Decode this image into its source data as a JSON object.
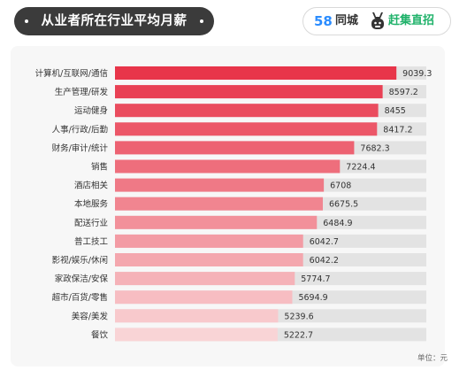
{
  "title": "从业者所在行业平均月薪资",
  "brand": {
    "part1": "58",
    "part2": "同城",
    "part3": "赶集直招",
    "logo_icon": "donkey-head-icon",
    "colors": {
      "blue": "#2a8cff",
      "orange": "#ff8a00",
      "green": "#1fb26a"
    }
  },
  "unit_label": "单位：元",
  "chart_data": {
    "type": "bar",
    "orientation": "horizontal",
    "title": "从业者所在行业平均月薪资",
    "categories": [
      "计算机/互联网/通信",
      "生产管理/研发",
      "运动健身",
      "人事/行政/后勤",
      "财务/审计/统计",
      "销售",
      "酒店相关",
      "本地服务",
      "配送行业",
      "普工技工",
      "影视/娱乐/休闲",
      "家政保洁/安保",
      "超市/百货/零售",
      "美容/美发",
      "餐饮"
    ],
    "values": [
      9039.3,
      8597.2,
      8455,
      8417.2,
      7682.3,
      7224.4,
      6708,
      6675.5,
      6484.9,
      6042.7,
      6042.2,
      5774.7,
      5694.9,
      5239.6,
      5222.7
    ],
    "value_labels": [
      "9039.3",
      "8597.2",
      "8455",
      "8417.2",
      "7682.3",
      "7224.4",
      "6708",
      "6675.5",
      "6484.9",
      "6042.7",
      "6042.2",
      "5774.7",
      "5694.9",
      "5239.6",
      "5222.7"
    ],
    "unit": "元",
    "xlim": [
      0,
      10000
    ],
    "grid": false,
    "legend": "none",
    "colors": {
      "bar_start": "#e8354a",
      "bar_end": "#f9d4d6",
      "track": "#e3e3e3"
    }
  }
}
